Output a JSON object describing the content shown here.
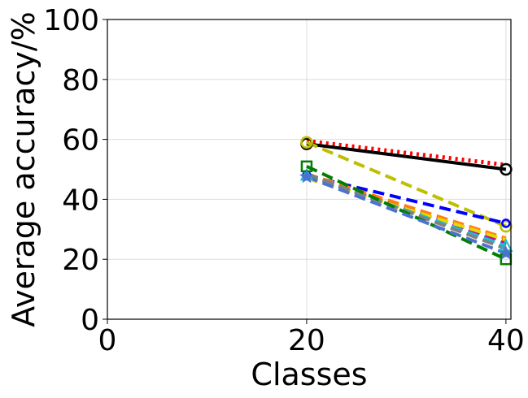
{
  "chart_data": {
    "type": "line",
    "xlabel": "Classes",
    "ylabel": "Average accuracy/%",
    "xlim": [
      0,
      40.5
    ],
    "ylim": [
      0,
      100
    ],
    "xticks": [
      0,
      20,
      40
    ],
    "yticks": [
      0,
      20,
      40,
      60,
      80,
      100
    ],
    "grid": true,
    "x": [
      20,
      40
    ],
    "series": [
      {
        "values": [
          59.5,
          51.5
        ],
        "color": "#ff0000",
        "linestyle": "dotted",
        "marker": "none"
      },
      {
        "values": [
          58.5,
          50.0
        ],
        "color": "#000000",
        "linestyle": "solid",
        "marker": "circle"
      },
      {
        "values": [
          59.0,
          31.0
        ],
        "color": "#bfbf00",
        "linestyle": "dashed",
        "marker": "circle"
      },
      {
        "values": [
          48.0,
          32.0
        ],
        "color": "#0000ff",
        "linestyle": "dashed",
        "marker": "circle-small"
      },
      {
        "values": [
          48.5,
          27.0
        ],
        "color": "#ff7f0e",
        "linestyle": "dashed",
        "marker": "none"
      },
      {
        "values": [
          47.5,
          26.0
        ],
        "color": "#d62728",
        "linestyle": "dashed",
        "marker": "none"
      },
      {
        "values": [
          48.0,
          25.0
        ],
        "color": "#bf00bf",
        "linestyle": "dashed",
        "marker": "none"
      },
      {
        "values": [
          47.0,
          26.5
        ],
        "color": "#e6d800",
        "linestyle": "dashed",
        "marker": "none"
      },
      {
        "values": [
          48.0,
          24.5
        ],
        "color": "#17becf",
        "linestyle": "dashed",
        "marker": "triangle"
      },
      {
        "values": [
          48.5,
          23.5
        ],
        "color": "#808080",
        "linestyle": "dashed",
        "marker": "none"
      },
      {
        "values": [
          51.0,
          20.0
        ],
        "color": "#007f00",
        "linestyle": "dashed",
        "marker": "square"
      },
      {
        "values": [
          47.5,
          22.0
        ],
        "color": "#4c72d0",
        "linestyle": "dashed",
        "marker": "star"
      }
    ]
  }
}
